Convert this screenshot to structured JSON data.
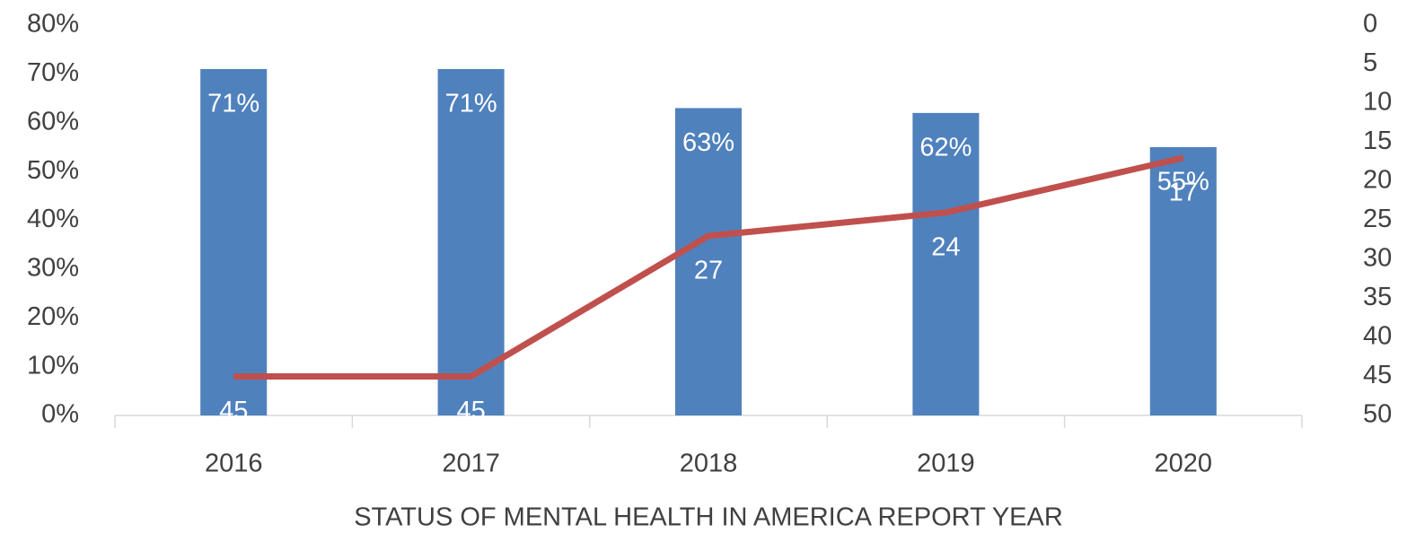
{
  "chart_data": {
    "type": "combo",
    "xlabel": "STATUS OF MENTAL HEALTH IN AMERICA REPORT YEAR",
    "categories": [
      "2016",
      "2017",
      "2018",
      "2019",
      "2020"
    ],
    "series": [
      {
        "type": "bar",
        "color": "#4f81bd",
        "values": [
          71,
          71,
          63,
          62,
          55
        ],
        "value_labels": [
          "71%",
          "71%",
          "63%",
          "62%",
          "55%"
        ]
      },
      {
        "type": "line",
        "axis": "y2",
        "color": "#c0504d",
        "values": [
          45,
          45,
          27,
          24,
          17
        ]
      }
    ],
    "ylim": [
      0,
      80
    ],
    "yticks": [
      {
        "value": 0,
        "label": "0%"
      },
      {
        "value": 10,
        "label": "10%"
      },
      {
        "value": 20,
        "label": "20%"
      },
      {
        "value": 30,
        "label": "30%"
      },
      {
        "value": 40,
        "label": "40%"
      },
      {
        "value": 50,
        "label": "50%"
      },
      {
        "value": 60,
        "label": "60%"
      },
      {
        "value": 70,
        "label": "70%"
      },
      {
        "value": 80,
        "label": "80%"
      }
    ],
    "y2lim": [
      50,
      0
    ],
    "y2ticks": [
      0,
      5,
      10,
      15,
      20,
      25,
      30,
      35,
      40,
      45,
      50
    ],
    "grid": false
  }
}
